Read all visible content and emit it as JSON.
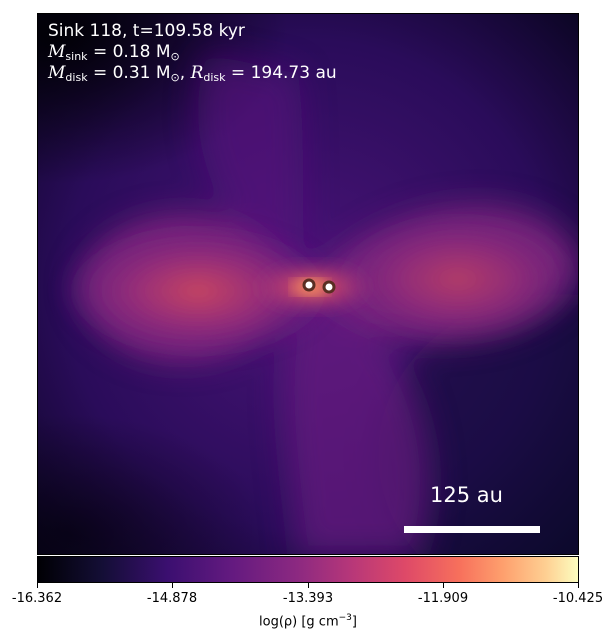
{
  "annotation": {
    "sink_line": "Sink 118, t=109.58 kyr",
    "msink_symbol": "M",
    "msink_sub": "sink",
    "msink_value": " = 0.18 M",
    "msink_sun_sub": "⊙",
    "mdisk_symbol": "M",
    "mdisk_sub": "disk",
    "mdisk_value": " = 0.31 M",
    "mdisk_sun_sub": "⊙",
    "mdisk_sep": ", ",
    "rdisk_symbol": "R",
    "rdisk_sub": "disk",
    "rdisk_value": " = 194.73 au"
  },
  "scale_bar": {
    "label": "125 au"
  },
  "colorbar": {
    "ticks": [
      "-16.362",
      "-14.878",
      "-13.393",
      "-11.909",
      "-10.425"
    ],
    "label_main": "log(ρ) [g cm",
    "label_sup": "−3",
    "label_end": "]"
  },
  "colors": {
    "background": "#000004",
    "disk_core": "#d14a5c",
    "sink_fill": "#ffffff",
    "sink_ring": "#5a2e22"
  }
}
